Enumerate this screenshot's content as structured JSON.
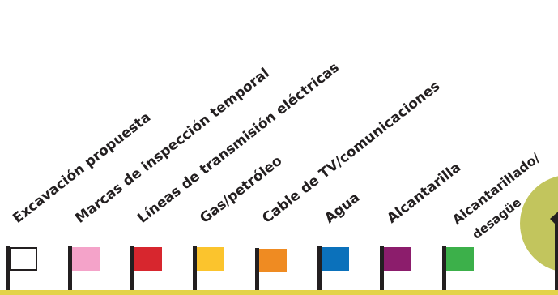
{
  "colors": {
    "ground": "#e3d34a",
    "pole": "#231f20",
    "deco_circle": "#c2c55d",
    "deco_shape": "#231f20"
  },
  "flags": [
    {
      "label": "Excavación propuesta",
      "color": "#ffffff",
      "border": "#231f20"
    },
    {
      "label": "Marcas de inspección temporal",
      "color": "#f4a3c9"
    },
    {
      "label": "Líneas de transmisión eléctricas",
      "color": "#d7262e"
    },
    {
      "label": "Gas/petróleo",
      "color": "#fbc42d"
    },
    {
      "label": "Cable de TV/comunicaciones",
      "color": "#ef8b22"
    },
    {
      "label": "Agua",
      "color": "#0b71bb"
    },
    {
      "label": "Alcantarilla",
      "color": "#8c1d6c"
    },
    {
      "label": "Alcantarillado/",
      "label2": "desagüe",
      "color": "#3cb04a"
    }
  ]
}
